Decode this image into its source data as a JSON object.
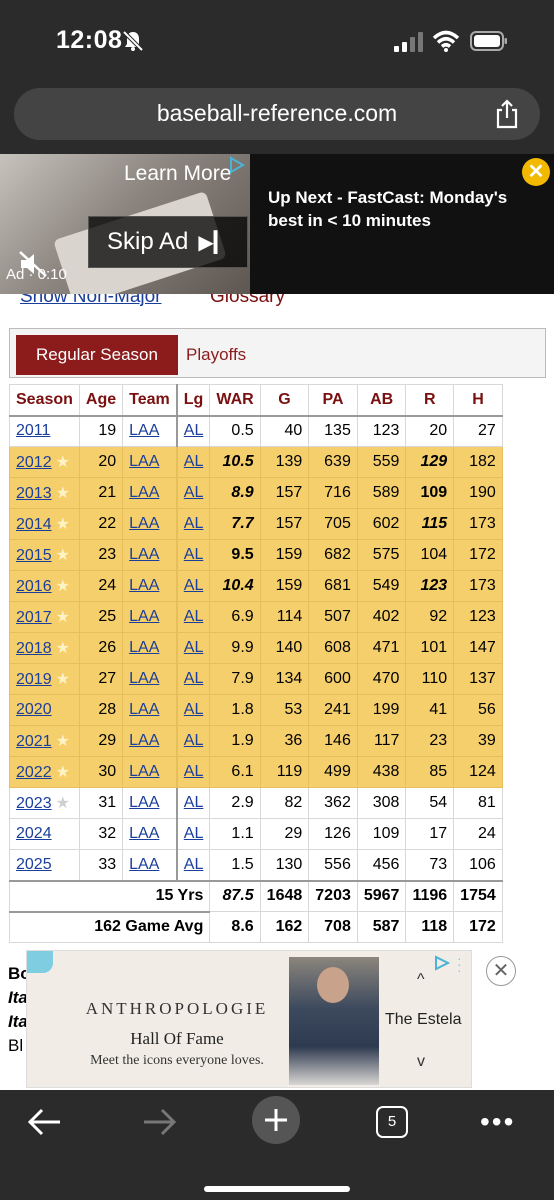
{
  "status": {
    "time": "12:08"
  },
  "browser": {
    "url": "baseball-reference.com",
    "tab_count": "5"
  },
  "top_ad": {
    "learn_more": "Learn More",
    "skip": "Skip Ad",
    "skip_arrow": "▶▎",
    "ad_time": "Ad · 0:10",
    "upnext": "Up Next - FastCast: Monday's best in < 10 minutes",
    "close": "✕"
  },
  "page": {
    "link_nonmajor": "Show Non-Major",
    "link_glossary": "Glossary",
    "tabs": {
      "regular": "Regular Season",
      "playoffs": "Playoffs"
    },
    "headers": [
      "Season",
      "Age",
      "Team",
      "Lg",
      "WAR",
      "G",
      "PA",
      "AB",
      "R",
      "H"
    ],
    "rows": [
      {
        "season": "2011",
        "age": "19",
        "team": "LAA",
        "lg": "AL",
        "war": "0.5",
        "g": "40",
        "pa": "135",
        "ab": "123",
        "r": "20",
        "h": "27",
        "allstar": false,
        "star": false
      },
      {
        "season": "2012",
        "age": "20",
        "team": "LAA",
        "lg": "AL",
        "war": "10.5",
        "g": "139",
        "pa": "639",
        "ab": "559",
        "r": "129",
        "h": "182",
        "allstar": true,
        "star": true,
        "war_style": "bi",
        "r_style": "bi"
      },
      {
        "season": "2013",
        "age": "21",
        "team": "LAA",
        "lg": "AL",
        "war": "8.9",
        "g": "157",
        "pa": "716",
        "ab": "589",
        "r": "109",
        "h": "190",
        "allstar": true,
        "star": true,
        "war_style": "bi",
        "r_style": "bold"
      },
      {
        "season": "2014",
        "age": "22",
        "team": "LAA",
        "lg": "AL",
        "war": "7.7",
        "g": "157",
        "pa": "705",
        "ab": "602",
        "r": "115",
        "h": "173",
        "allstar": true,
        "star": true,
        "war_style": "bi",
        "r_style": "bi"
      },
      {
        "season": "2015",
        "age": "23",
        "team": "LAA",
        "lg": "AL",
        "war": "9.5",
        "g": "159",
        "pa": "682",
        "ab": "575",
        "r": "104",
        "h": "172",
        "allstar": true,
        "star": true,
        "war_style": "bold"
      },
      {
        "season": "2016",
        "age": "24",
        "team": "LAA",
        "lg": "AL",
        "war": "10.4",
        "g": "159",
        "pa": "681",
        "ab": "549",
        "r": "123",
        "h": "173",
        "allstar": true,
        "star": true,
        "war_style": "bi",
        "r_style": "bi"
      },
      {
        "season": "2017",
        "age": "25",
        "team": "LAA",
        "lg": "AL",
        "war": "6.9",
        "g": "114",
        "pa": "507",
        "ab": "402",
        "r": "92",
        "h": "123",
        "allstar": true,
        "star": true
      },
      {
        "season": "2018",
        "age": "26",
        "team": "LAA",
        "lg": "AL",
        "war": "9.9",
        "g": "140",
        "pa": "608",
        "ab": "471",
        "r": "101",
        "h": "147",
        "allstar": true,
        "star": true
      },
      {
        "season": "2019",
        "age": "27",
        "team": "LAA",
        "lg": "AL",
        "war": "7.9",
        "g": "134",
        "pa": "600",
        "ab": "470",
        "r": "110",
        "h": "137",
        "allstar": true,
        "star": true
      },
      {
        "season": "2020",
        "age": "28",
        "team": "LAA",
        "lg": "AL",
        "war": "1.8",
        "g": "53",
        "pa": "241",
        "ab": "199",
        "r": "41",
        "h": "56",
        "allstar": true,
        "star": false
      },
      {
        "season": "2021",
        "age": "29",
        "team": "LAA",
        "lg": "AL",
        "war": "1.9",
        "g": "36",
        "pa": "146",
        "ab": "117",
        "r": "23",
        "h": "39",
        "allstar": true,
        "star": true
      },
      {
        "season": "2022",
        "age": "30",
        "team": "LAA",
        "lg": "AL",
        "war": "6.1",
        "g": "119",
        "pa": "499",
        "ab": "438",
        "r": "85",
        "h": "124",
        "allstar": true,
        "star": true
      },
      {
        "season": "2023",
        "age": "31",
        "team": "LAA",
        "lg": "AL",
        "war": "2.9",
        "g": "82",
        "pa": "362",
        "ab": "308",
        "r": "54",
        "h": "81",
        "allstar": false,
        "star": true
      },
      {
        "season": "2024",
        "age": "32",
        "team": "LAA",
        "lg": "AL",
        "war": "1.1",
        "g": "29",
        "pa": "126",
        "ab": "109",
        "r": "17",
        "h": "24",
        "allstar": false,
        "star": false
      },
      {
        "season": "2025",
        "age": "33",
        "team": "LAA",
        "lg": "AL",
        "war": "1.5",
        "g": "130",
        "pa": "556",
        "ab": "456",
        "r": "73",
        "h": "106",
        "allstar": false,
        "star": false
      }
    ],
    "totals": {
      "label": "15 Yrs",
      "war": "87.5",
      "g": "1648",
      "pa": "7203",
      "ab": "5967",
      "r": "1196",
      "h": "1754"
    },
    "average": {
      "label": "162 Game Avg",
      "war": "8.6",
      "g": "162",
      "pa": "708",
      "ab": "587",
      "r": "118",
      "h": "172"
    },
    "below_lines": [
      "Bo",
      "Ita",
      "Ita",
      "Bl"
    ]
  },
  "bottom_ad": {
    "brand": "ANTHROPOLOGIE",
    "headline": "Hall Of Fame",
    "tagline": "Meet the icons everyone loves.",
    "product": "The Estela",
    "up": "^",
    "down": "v",
    "close": "✕"
  }
}
